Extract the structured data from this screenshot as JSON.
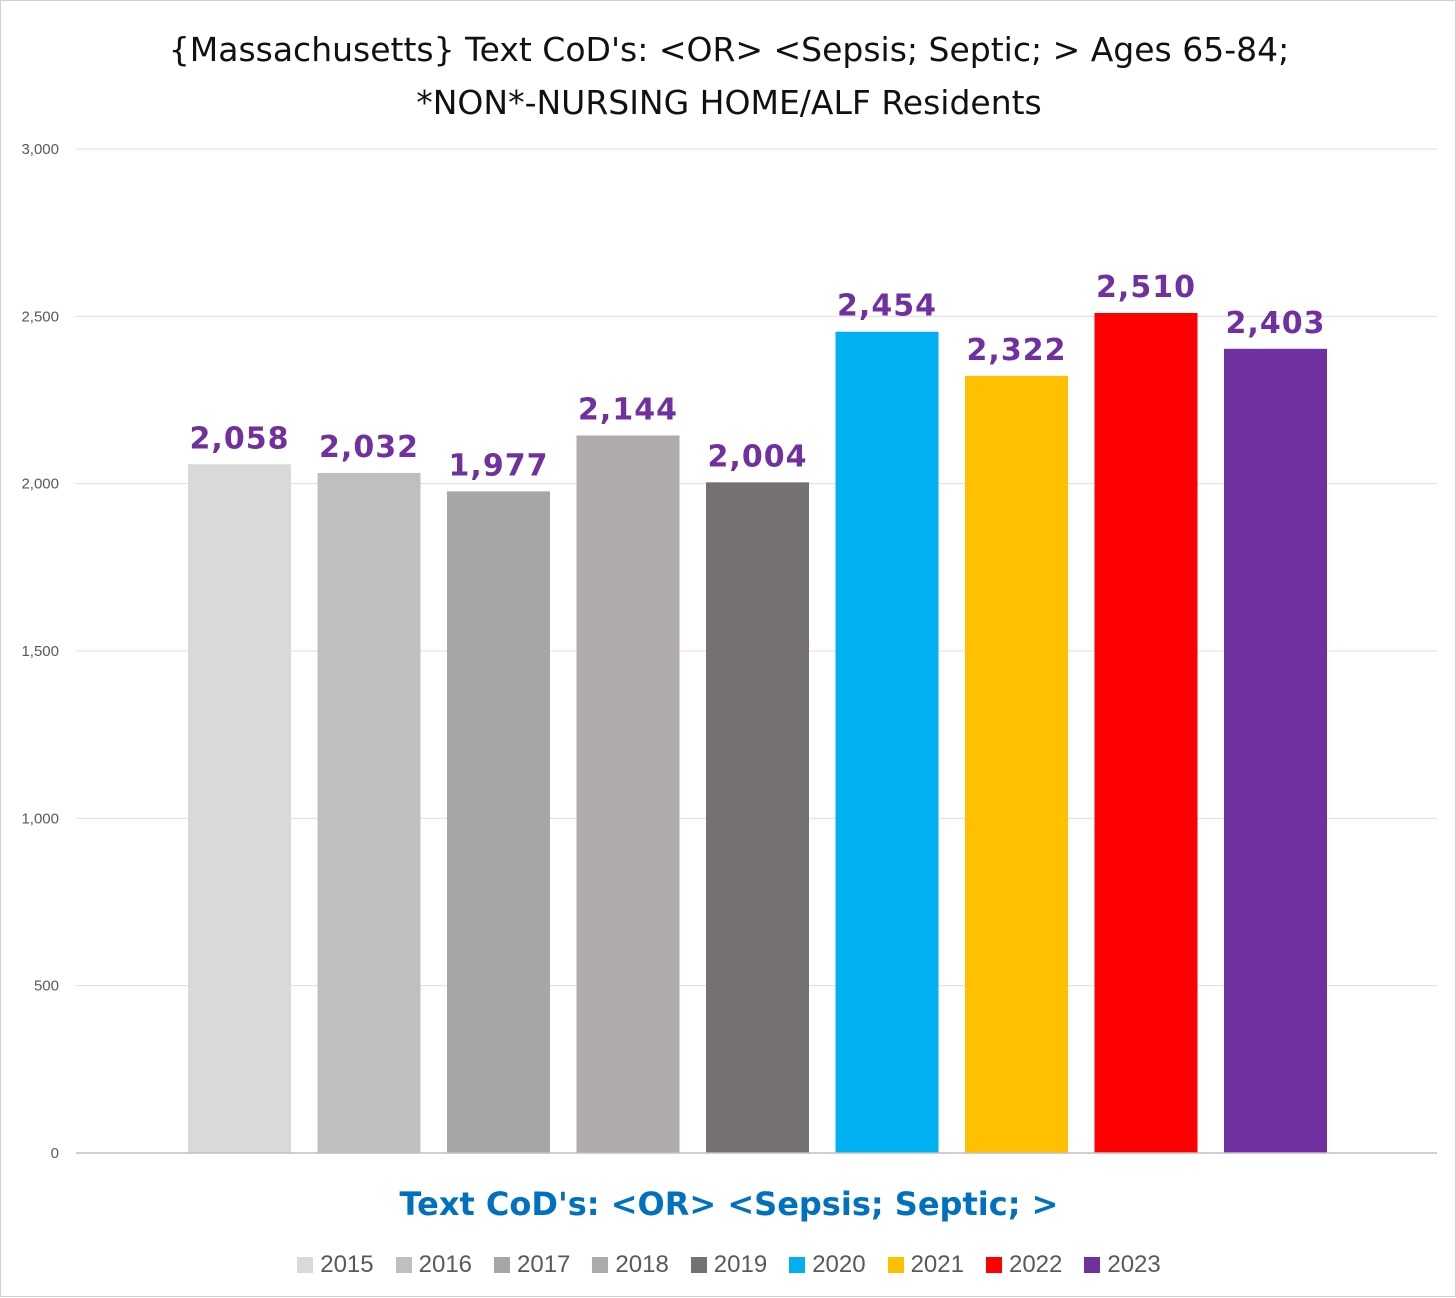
{
  "chart_data": {
    "type": "bar",
    "title": "{Massachusetts}  Text CoD's: <OR> <Sepsis; Septic; > Ages 65-84; *NON*-NURSING HOME/ALF Residents",
    "xlabel": "Text CoD's: <OR> <Sepsis; Septic; >",
    "ylabel": "",
    "ylim": [
      0,
      3000
    ],
    "yticks": [
      0,
      500,
      1000,
      1500,
      2000,
      2500,
      3000
    ],
    "ytick_labels": [
      "0",
      "500",
      "1,000",
      "1,500",
      "2,000",
      "2,500",
      "3,000"
    ],
    "grid": true,
    "legend_position": "bottom",
    "label_color": "#7030a0",
    "series": [
      {
        "name": "2015",
        "value": 2058,
        "label": "2,058",
        "color": "#d9d9d9"
      },
      {
        "name": "2016",
        "value": 2032,
        "label": "2,032",
        "color": "#bfbfbf"
      },
      {
        "name": "2017",
        "value": 1977,
        "label": "1,977",
        "color": "#a6a6a6"
      },
      {
        "name": "2018",
        "value": 2144,
        "label": "2,144",
        "color": "#afabab"
      },
      {
        "name": "2019",
        "value": 2004,
        "label": "2,004",
        "color": "#767171"
      },
      {
        "name": "2020",
        "value": 2454,
        "label": "2,454",
        "color": "#00b0f0"
      },
      {
        "name": "2021",
        "value": 2322,
        "label": "2,322",
        "color": "#ffc000"
      },
      {
        "name": "2022",
        "value": 2510,
        "label": "2,510",
        "color": "#ff0000"
      },
      {
        "name": "2023",
        "value": 2403,
        "label": "2,403",
        "color": "#7030a0"
      }
    ]
  }
}
